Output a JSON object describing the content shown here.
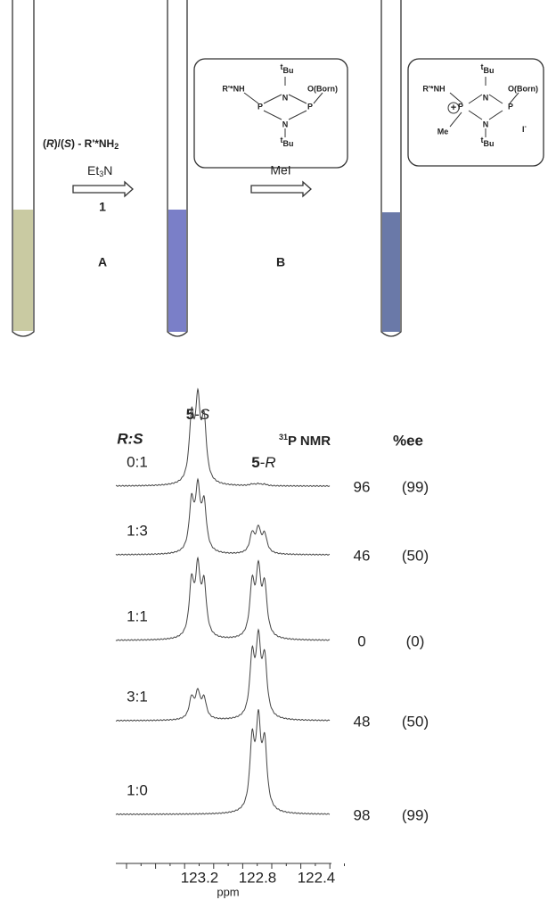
{
  "scheme": {
    "substrate": {
      "parts": [
        "(",
        "R",
        ")/(",
        "S",
        ") - R'*NH",
        "2"
      ]
    },
    "step1": {
      "reagent": {
        "parts": [
          "Et",
          "3",
          "N"
        ]
      },
      "compound": "1",
      "label": "A"
    },
    "step2": {
      "reagent": "MeI",
      "label": "B"
    },
    "structure_b": {
      "amine": "R'*NH",
      "n_top": "N",
      "n_bottom": "N",
      "p_left": "P",
      "p_right": "P",
      "o_group": "O(Born)",
      "tbu_top": {
        "sup": "t",
        "text": "Bu"
      },
      "tbu_bottom": {
        "sup": "t",
        "text": "Bu"
      }
    },
    "structure_c": {
      "amine": "R'*NH",
      "n_top": "N",
      "n_bottom": "N",
      "p_left": "P",
      "p_right": "P",
      "o_group": "O(Born)",
      "methyl": "Me",
      "charge": "+",
      "counterion": {
        "text": "I",
        "sup": "-"
      },
      "tbu_top": {
        "sup": "t",
        "text": "Bu"
      },
      "tbu_bottom": {
        "sup": "t",
        "text": "Bu"
      }
    }
  },
  "spectra": {
    "ratio_header": "R:S",
    "peak_s": {
      "num": "5",
      "sep": "-",
      "enantiomer": "S"
    },
    "peak_r": {
      "num": "5",
      "sep": "-",
      "enantiomer": "R"
    },
    "nmr_header": {
      "sup": "31",
      "text": "P NMR"
    },
    "ee_header": "%ee",
    "rows": [
      {
        "ratio": "0:1",
        "ee": "96",
        "ee_ref": "(99)"
      },
      {
        "ratio": "1:3",
        "ee": "46",
        "ee_ref": "(50)"
      },
      {
        "ratio": "1:1",
        "ee": "0",
        "ee_ref": "(0)"
      },
      {
        "ratio": "3:1",
        "ee": "48",
        "ee_ref": "(50)"
      },
      {
        "ratio": "1:0",
        "ee": "98",
        "ee_ref": "(99)"
      }
    ],
    "axis": {
      "ticks": [
        "123.2",
        "122.8",
        "122.4"
      ],
      "label": "ppm"
    }
  }
}
